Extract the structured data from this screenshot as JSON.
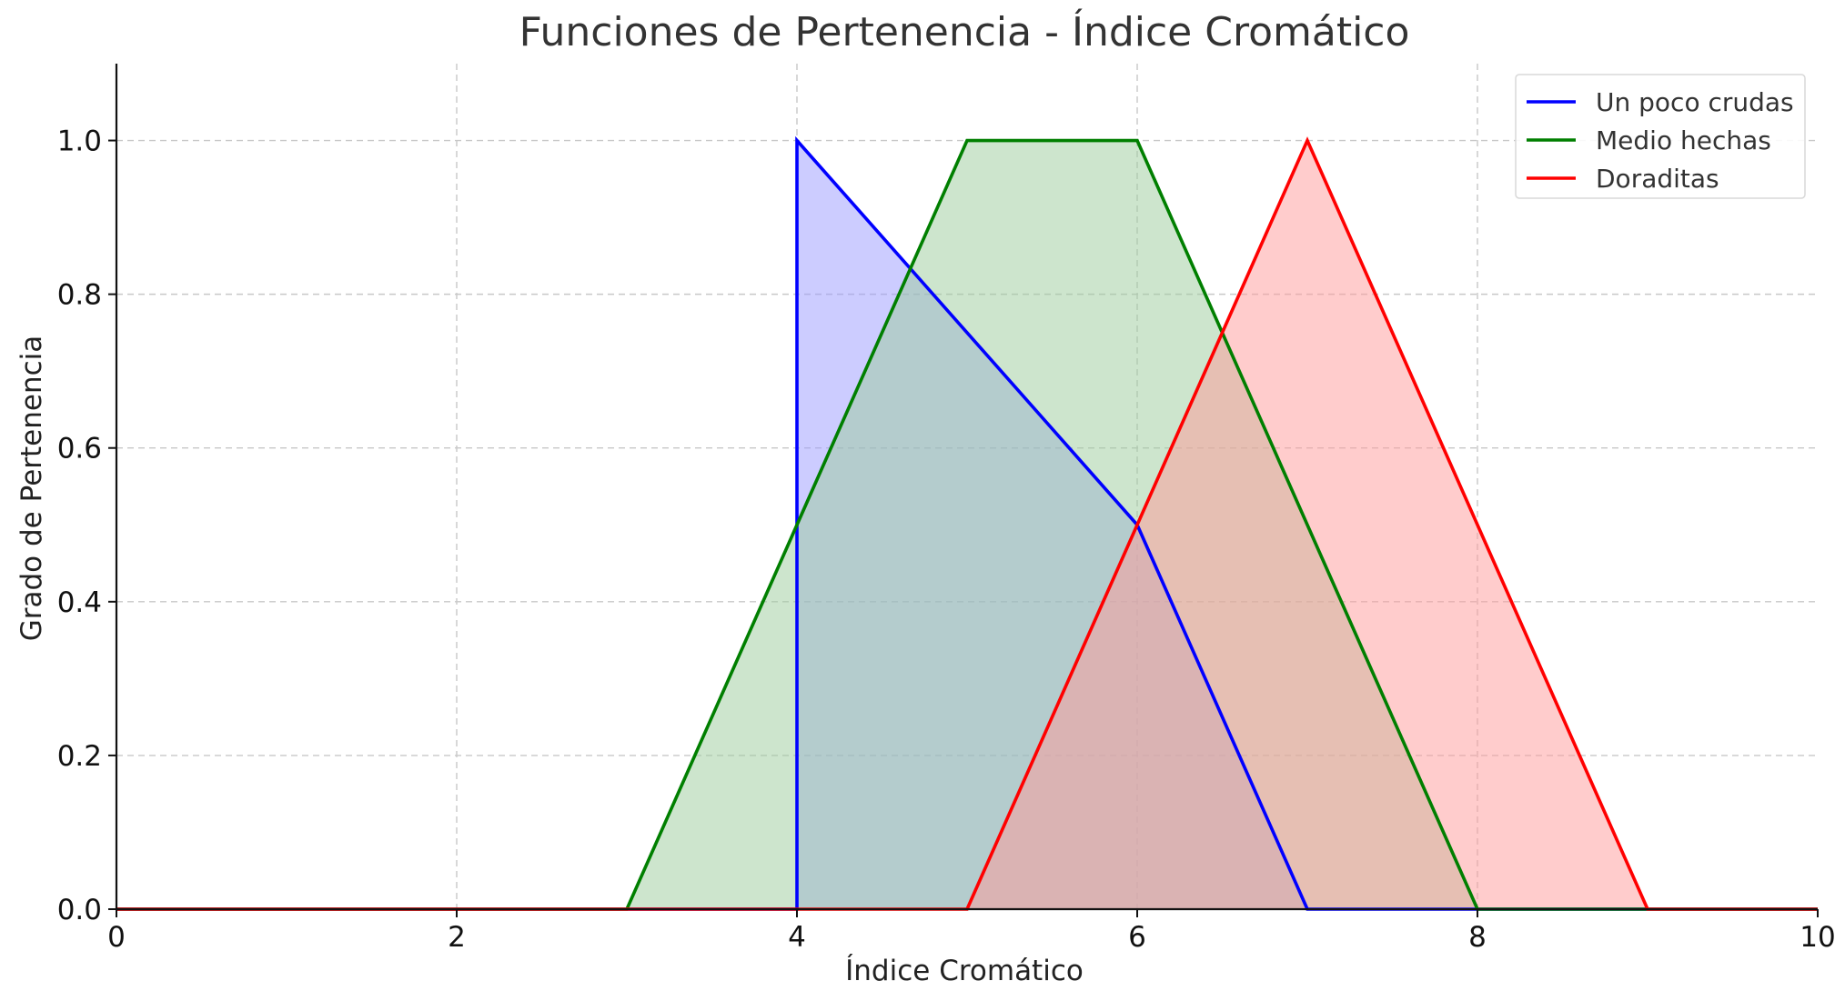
{
  "chart_data": {
    "type": "line",
    "title": "Funciones de Pertenencia - Índice Cromático",
    "xlabel": "Índice Cromático",
    "ylabel": "Grado de Pertenencia",
    "xlim": [
      0,
      10
    ],
    "ylim": [
      0,
      1.1
    ],
    "xticks": [
      0,
      2,
      4,
      6,
      8,
      10
    ],
    "xtick_labels": [
      "0",
      "2",
      "4",
      "6",
      "8",
      "10"
    ],
    "yticks": [
      0,
      0.2,
      0.4,
      0.6,
      0.8,
      1.0
    ],
    "ytick_labels": [
      "0.0",
      "0.2",
      "0.4",
      "0.6",
      "0.8",
      "1.0"
    ],
    "grid": true,
    "legend_position": "top-right",
    "series": [
      {
        "name": "Un poco crudas",
        "color": "#0000ff",
        "fill_color": "#9999ff",
        "fill_opacity": 0.5,
        "x": [
          0,
          4,
          4,
          6,
          7,
          10
        ],
        "y": [
          0,
          0,
          1,
          0.5,
          0,
          0
        ]
      },
      {
        "name": "Medio hechas",
        "color": "#007f00",
        "fill_color": "#9ccc9c",
        "fill_opacity": 0.5,
        "x": [
          0,
          3,
          5,
          6,
          8,
          10
        ],
        "y": [
          0,
          0,
          1,
          1,
          0,
          0
        ]
      },
      {
        "name": "Doraditas",
        "color": "#ff0000",
        "fill_color": "#ff9999",
        "fill_opacity": 0.5,
        "x": [
          0,
          5,
          7,
          9,
          10
        ],
        "y": [
          0,
          0,
          1,
          0,
          0
        ]
      }
    ]
  }
}
